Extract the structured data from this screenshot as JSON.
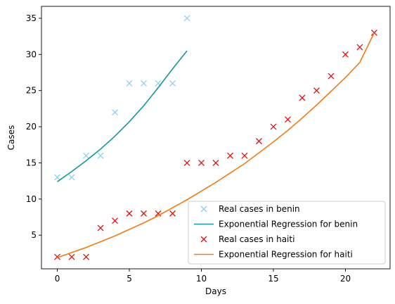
{
  "chart_data": {
    "type": "scatter",
    "xlabel": "Days",
    "ylabel": "Cases",
    "xlim": [
      -1.1,
      23.1
    ],
    "ylim": [
      0.35,
      36.65
    ],
    "xticks": [
      0,
      5,
      10,
      15,
      20
    ],
    "yticks": [
      5,
      10,
      15,
      20,
      25,
      30,
      35
    ],
    "grid": false,
    "legend_position": "lower-right",
    "series": [
      {
        "name": "Real cases in benin",
        "kind": "markers",
        "marker": "x",
        "color": "#8ecff5",
        "x": [
          0,
          1,
          2,
          3,
          4,
          5,
          6,
          7,
          8,
          9
        ],
        "y": [
          13,
          13,
          16,
          16,
          22,
          26,
          26,
          26,
          26,
          35
        ]
      },
      {
        "name": "Exponential Regression for benin",
        "kind": "line",
        "color": "#0e9a96",
        "x": [
          0,
          1,
          2,
          3,
          4,
          5,
          6,
          7,
          8,
          9
        ],
        "y": [
          12.4,
          13.8,
          15.3,
          16.9,
          18.7,
          20.7,
          22.9,
          25.4,
          28.0,
          30.5
        ]
      },
      {
        "name": "Real cases in haiti",
        "kind": "markers",
        "marker": "x",
        "color": "#dd1111",
        "x": [
          0,
          1,
          2,
          3,
          4,
          5,
          6,
          7,
          8,
          9,
          10,
          11,
          12,
          13,
          14,
          15,
          16,
          17,
          18,
          19,
          20,
          21,
          22
        ],
        "y": [
          2,
          2,
          2,
          6,
          7,
          8,
          8,
          8,
          8,
          15,
          15,
          15,
          16,
          16,
          18,
          20,
          21,
          24,
          25,
          27,
          30,
          31,
          33
        ]
      },
      {
        "name": "Exponential Regression for haiti",
        "kind": "line",
        "color": "#f47b12",
        "x": [
          0,
          1,
          2,
          3,
          4,
          5,
          6,
          7,
          8,
          9,
          10,
          11,
          12,
          13,
          14,
          15,
          16,
          17,
          18,
          19,
          20,
          21,
          22
        ],
        "y": [
          1.9,
          2.6,
          3.3,
          4.1,
          4.9,
          5.8,
          6.7,
          7.7,
          8.8,
          9.9,
          11.1,
          12.3,
          13.6,
          14.9,
          16.4,
          17.9,
          19.5,
          21.2,
          23.0,
          24.9,
          26.8,
          28.9,
          33.0
        ]
      }
    ]
  }
}
